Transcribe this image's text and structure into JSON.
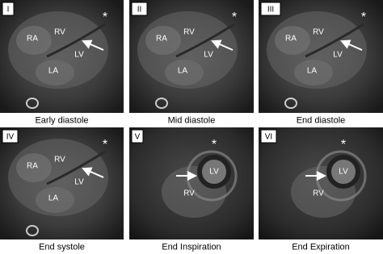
{
  "panels": [
    {
      "numeral": "I",
      "caption": "Early diastole",
      "labels": [
        "RA",
        "RV",
        "LV",
        "LA",
        "*"
      ]
    },
    {
      "numeral": "II",
      "caption": "Mid diastole",
      "labels": [
        "RA",
        "RV",
        "LV",
        "LA",
        "*"
      ]
    },
    {
      "numeral": "III",
      "caption": "End diastole",
      "labels": [
        "RA",
        "RV",
        "LV",
        "LA",
        "*"
      ]
    },
    {
      "numeral": "IV",
      "caption": "End systole",
      "labels": [
        "RA",
        "RV",
        "LV",
        "LA",
        "*"
      ]
    },
    {
      "numeral": "V",
      "caption": "End Inspiration",
      "labels": [
        "*",
        "LV",
        "RV"
      ]
    },
    {
      "numeral": "VI",
      "caption": "End Expiration",
      "labels": [
        "*",
        "LV",
        "RV"
      ]
    }
  ]
}
